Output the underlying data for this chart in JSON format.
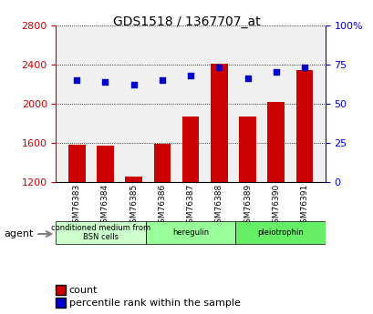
{
  "title": "GDS1518 / 1367707_at",
  "samples": [
    "GSM76383",
    "GSM76384",
    "GSM76385",
    "GSM76386",
    "GSM76387",
    "GSM76388",
    "GSM76389",
    "GSM76390",
    "GSM76391"
  ],
  "counts": [
    1580,
    1575,
    1260,
    1590,
    1870,
    2410,
    1870,
    2020,
    2340
  ],
  "percentiles": [
    65,
    64,
    62,
    65,
    68,
    73,
    66,
    70,
    73
  ],
  "count_base": 1200,
  "ylim_left": [
    1200,
    2800
  ],
  "ylim_right": [
    0,
    100
  ],
  "yticks_left": [
    1200,
    1600,
    2000,
    2400,
    2800
  ],
  "yticks_right": [
    0,
    25,
    50,
    75,
    100
  ],
  "bar_color": "#cc0000",
  "dot_color": "#0000cc",
  "groups": [
    {
      "label": "conditioned medium from\nBSN cells",
      "start": 0,
      "end": 3,
      "color": "#ccffcc"
    },
    {
      "label": "heregulin",
      "start": 3,
      "end": 6,
      "color": "#99ff99"
    },
    {
      "label": "pleiotrophin",
      "start": 6,
      "end": 9,
      "color": "#66ee66"
    }
  ],
  "agent_label": "agent",
  "legend_count_label": "count",
  "legend_pct_label": "percentile rank within the sample",
  "plot_bg_color": "#f0f0f0",
  "left_label_color": "#cc0000",
  "right_label_color": "#0000cc"
}
